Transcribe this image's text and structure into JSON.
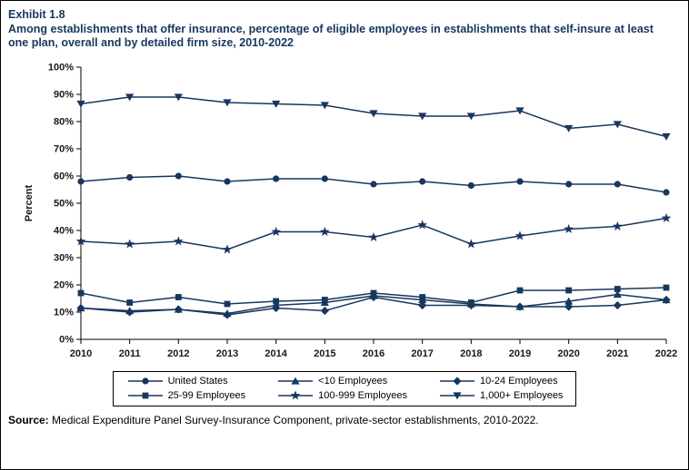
{
  "header": {
    "exhibit": "Exhibit 1.8",
    "title": "Among establishments that offer insurance, percentage of eligible employees in establishments that self-insure at least one plan, overall and by detailed firm size, 2010-2022"
  },
  "chart_data": {
    "type": "line",
    "x": [
      2010,
      2011,
      2012,
      2013,
      2014,
      2015,
      2016,
      2017,
      2018,
      2019,
      2020,
      2021,
      2022
    ],
    "series": [
      {
        "name": "United States",
        "marker": "circle",
        "values": [
          58,
          59.5,
          60,
          58,
          59,
          59,
          57,
          58,
          56.5,
          58,
          57,
          57,
          54
        ]
      },
      {
        "name": "<10 Employees",
        "marker": "triangle-up",
        "values": [
          11.5,
          10.5,
          11,
          9.5,
          12.5,
          13.5,
          16,
          14.5,
          13,
          12,
          14,
          16.5,
          14.5
        ]
      },
      {
        "name": "10-24 Employees",
        "marker": "diamond",
        "values": [
          11.5,
          10,
          11,
          9,
          11.5,
          10.5,
          15.5,
          12.5,
          12.5,
          12,
          12,
          12.5,
          14.5
        ]
      },
      {
        "name": "25-99 Employees",
        "marker": "square",
        "values": [
          17,
          13.5,
          15.5,
          13,
          14,
          14.5,
          17,
          15.5,
          13.5,
          18,
          18,
          18.5,
          19
        ]
      },
      {
        "name": "100-999 Employees",
        "marker": "star",
        "values": [
          36,
          35,
          36,
          33,
          39.5,
          39.5,
          37.5,
          42,
          35,
          38,
          40.5,
          41.5,
          44.5
        ]
      },
      {
        "name": "1,000+ Employees",
        "marker": "triangle-down",
        "values": [
          86.5,
          89,
          89,
          87,
          86.5,
          86,
          83,
          82,
          82,
          84,
          77.5,
          79,
          74.5
        ]
      }
    ],
    "ylabel": "Percent",
    "xlabel": "",
    "ylim": [
      0,
      100
    ],
    "ytick_step": 10,
    "ytick_suffix": "%",
    "grid": false,
    "legend_position": "bottom",
    "line_color": "#17375E",
    "axis_text_color": "#1a1a1a"
  },
  "source": {
    "prefix": "Source:",
    "text": " Medical Expenditure Panel Survey-Insurance Component, private-sector establishments, 2010-2022."
  }
}
